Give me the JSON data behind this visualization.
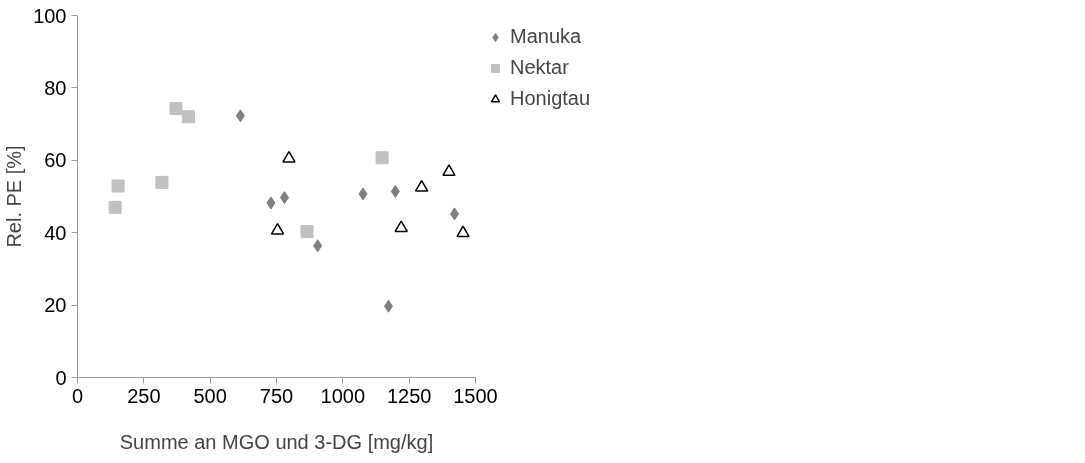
{
  "chart_data": {
    "type": "scatter",
    "xlabel": "Summe an MGO und 3-DG [mg/kg]",
    "ylabel": "Rel. PE [%]",
    "xlim": [
      0,
      1500
    ],
    "xticks": [
      0,
      250,
      500,
      750,
      1000,
      1250,
      1500
    ],
    "ylim": [
      0,
      100
    ],
    "yticks": [
      0,
      20,
      40,
      60,
      80,
      100
    ],
    "grid": false,
    "legend": "right",
    "series": [
      {
        "name": "Manuka",
        "color": "#7f7f7f",
        "marker": "diamond",
        "x": [
          614,
          729,
          780,
          905,
          1076,
          1172,
          1198,
          1421
        ],
        "values": [
          72.3,
          48.2,
          49.7,
          36.4,
          50.7,
          19.7,
          51.4,
          45.2
        ]
      },
      {
        "name": "Nektar",
        "color": "#c0c0c0",
        "marker": "square",
        "x": [
          142,
          153,
          318,
          371,
          418,
          865,
          1148
        ],
        "values": [
          47.0,
          52.9,
          53.9,
          74.3,
          72.0,
          40.3,
          60.7
        ]
      },
      {
        "name": "Honigtau",
        "color": "#000000",
        "marker": "triangle",
        "x": [
          754,
          797,
          1220,
          1297,
          1400,
          1453
        ],
        "values": [
          40.6,
          60.5,
          41.3,
          52.5,
          56.8,
          39.9
        ]
      }
    ]
  }
}
